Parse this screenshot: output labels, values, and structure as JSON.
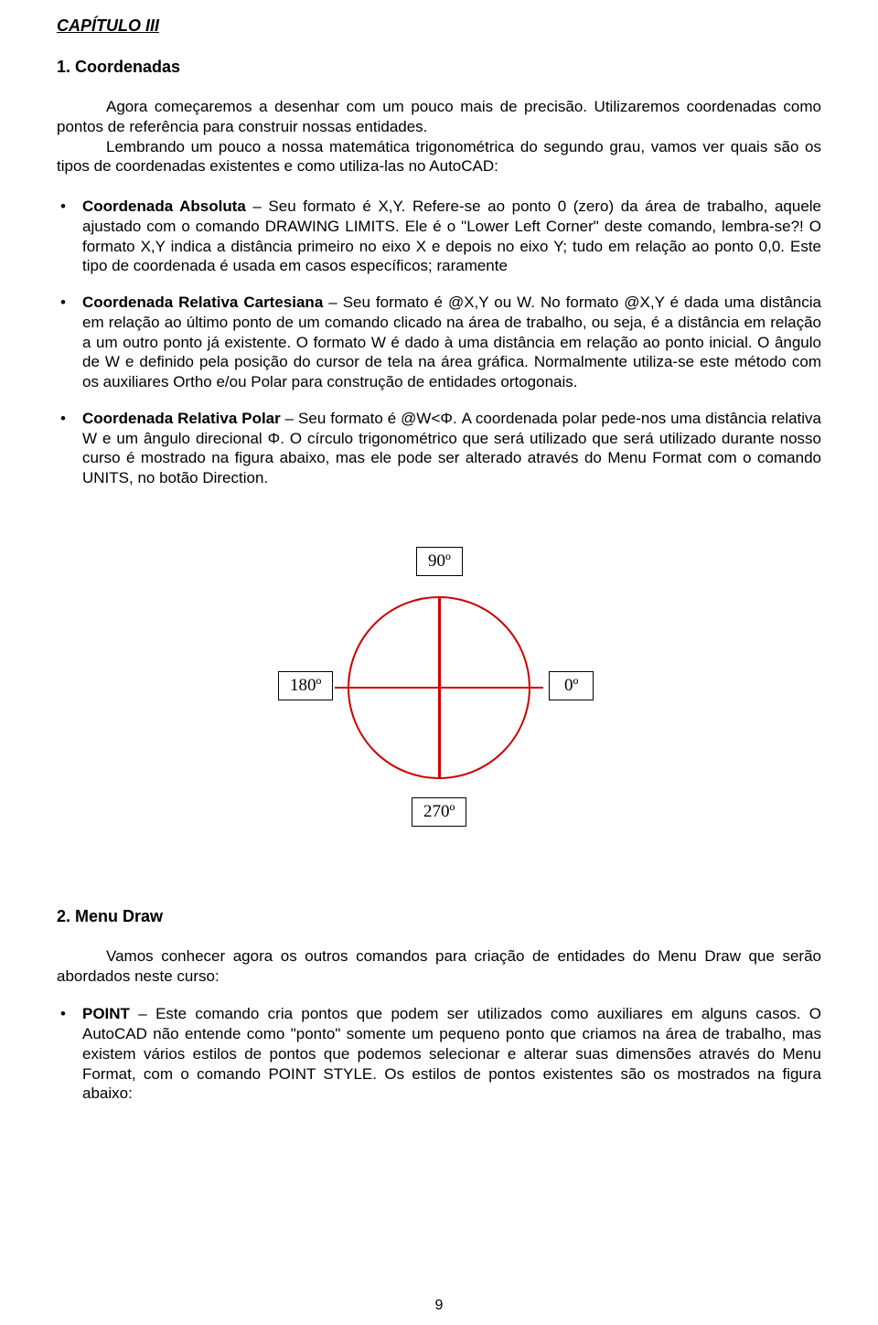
{
  "chapter": "CAPÍTULO III",
  "section1": {
    "title": "1.  Coordenadas",
    "intro": "Agora começaremos a desenhar com um pouco mais de precisão. Utilizaremos coordenadas como pontos de referência para construir nossas entidades.",
    "intro2": "Lembrando um pouco a nossa matemática trigonométrica do segundo grau, vamos ver quais são os tipos de coordenadas existentes e como utiliza-las no AutoCAD:",
    "items": [
      {
        "lead": "Coordenada Absoluta",
        "body": " – Seu formato é X,Y. Refere-se ao ponto 0 (zero) da área de trabalho, aquele ajustado com o comando DRAWING LIMITS. Ele é o \"Lower Left Corner\" deste comando, lembra-se?! O formato X,Y indica a distância primeiro no eixo X e depois no eixo Y; tudo em relação ao ponto 0,0. Este tipo de coordenada é usada em casos específicos; raramente"
      },
      {
        "lead": "Coordenada Relativa Cartesiana",
        "body": " – Seu formato é @X,Y ou W. No formato @X,Y é dada uma distância em relação ao último ponto de um comando clicado na área de trabalho, ou seja, é a distância em relação a um outro ponto já existente. O formato W é dado à uma distância em relação ao ponto inicial. O ângulo de W e definido pela posição do cursor de tela na área gráfica. Normalmente utiliza-se este método com os auxiliares Ortho e/ou Polar para construção de entidades ortogonais."
      },
      {
        "lead": "Coordenada Relativa Polar",
        "body": " – Seu formato é @W<Φ. A coordenada polar pede-nos uma distância relativa W e um ângulo direcional Φ. O círculo trigonométrico que será utilizado que será utilizado durante nosso curso é mostrado na figura abaixo, mas ele pode ser alterado através do Menu Format com o comando UNITS, no botão Direction."
      }
    ]
  },
  "diagram": {
    "angle_top": "90º",
    "angle_left": "180º",
    "angle_right": "0º",
    "angle_bottom": "270º",
    "circle_stroke": "#cc0000",
    "border_color": "#000000",
    "circle_stroke_width": 2.5
  },
  "section2": {
    "title": "2.  Menu Draw",
    "intro": "Vamos conhecer agora os outros comandos para criação de entidades do Menu Draw que serão abordados neste curso:",
    "items": [
      {
        "lead": "POINT",
        "body": " – Este comando cria pontos que podem ser utilizados como auxiliares em alguns casos. O AutoCAD não entende como \"ponto\" somente um pequeno ponto que criamos na área de trabalho, mas existem vários estilos de pontos que podemos selecionar e alterar suas dimensões através do Menu Format, com o comando POINT STYLE. Os estilos de pontos existentes são os mostrados na figura abaixo:"
      }
    ]
  },
  "page_number": "9"
}
